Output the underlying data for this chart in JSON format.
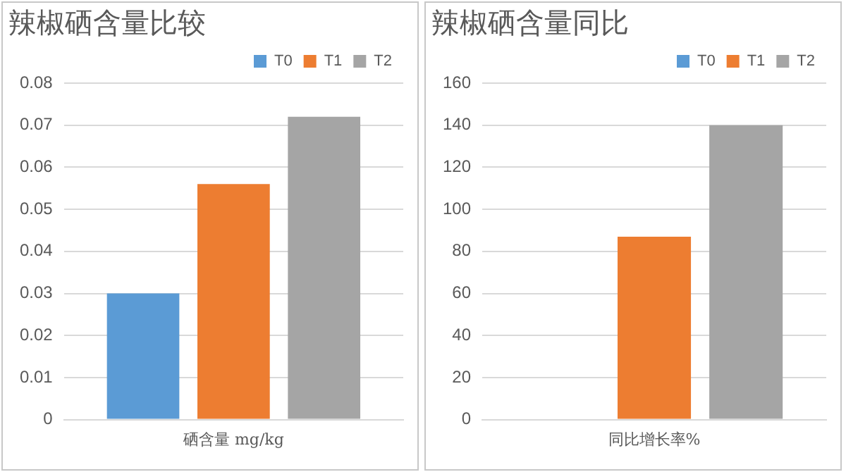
{
  "chart_data": [
    {
      "type": "bar",
      "title": "辣椒硒含量比较",
      "categories": [
        "硒含量 mg/kg"
      ],
      "series": [
        {
          "name": "T0",
          "color": "#5b9bd5",
          "values": [
            0.03
          ]
        },
        {
          "name": "T1",
          "color": "#ed7d31",
          "values": [
            0.056
          ]
        },
        {
          "name": "T2",
          "color": "#a5a5a5",
          "values": [
            0.072
          ]
        }
      ],
      "ylim": [
        0,
        0.08
      ],
      "yticks": [
        0,
        0.01,
        0.02,
        0.03,
        0.04,
        0.05,
        0.06,
        0.07,
        0.08
      ],
      "grid": "y",
      "legend": "top right"
    },
    {
      "type": "bar",
      "title": "辣椒硒含量同比",
      "categories": [
        "同比增长率%"
      ],
      "series": [
        {
          "name": "T0",
          "color": "#5b9bd5",
          "values": [
            0
          ]
        },
        {
          "name": "T1",
          "color": "#ed7d31",
          "values": [
            87
          ]
        },
        {
          "name": "T2",
          "color": "#a5a5a5",
          "values": [
            140
          ]
        }
      ],
      "ylim": [
        0,
        160
      ],
      "yticks": [
        0,
        20,
        40,
        60,
        80,
        100,
        120,
        140,
        160
      ],
      "grid": "y",
      "legend": "top right"
    }
  ]
}
